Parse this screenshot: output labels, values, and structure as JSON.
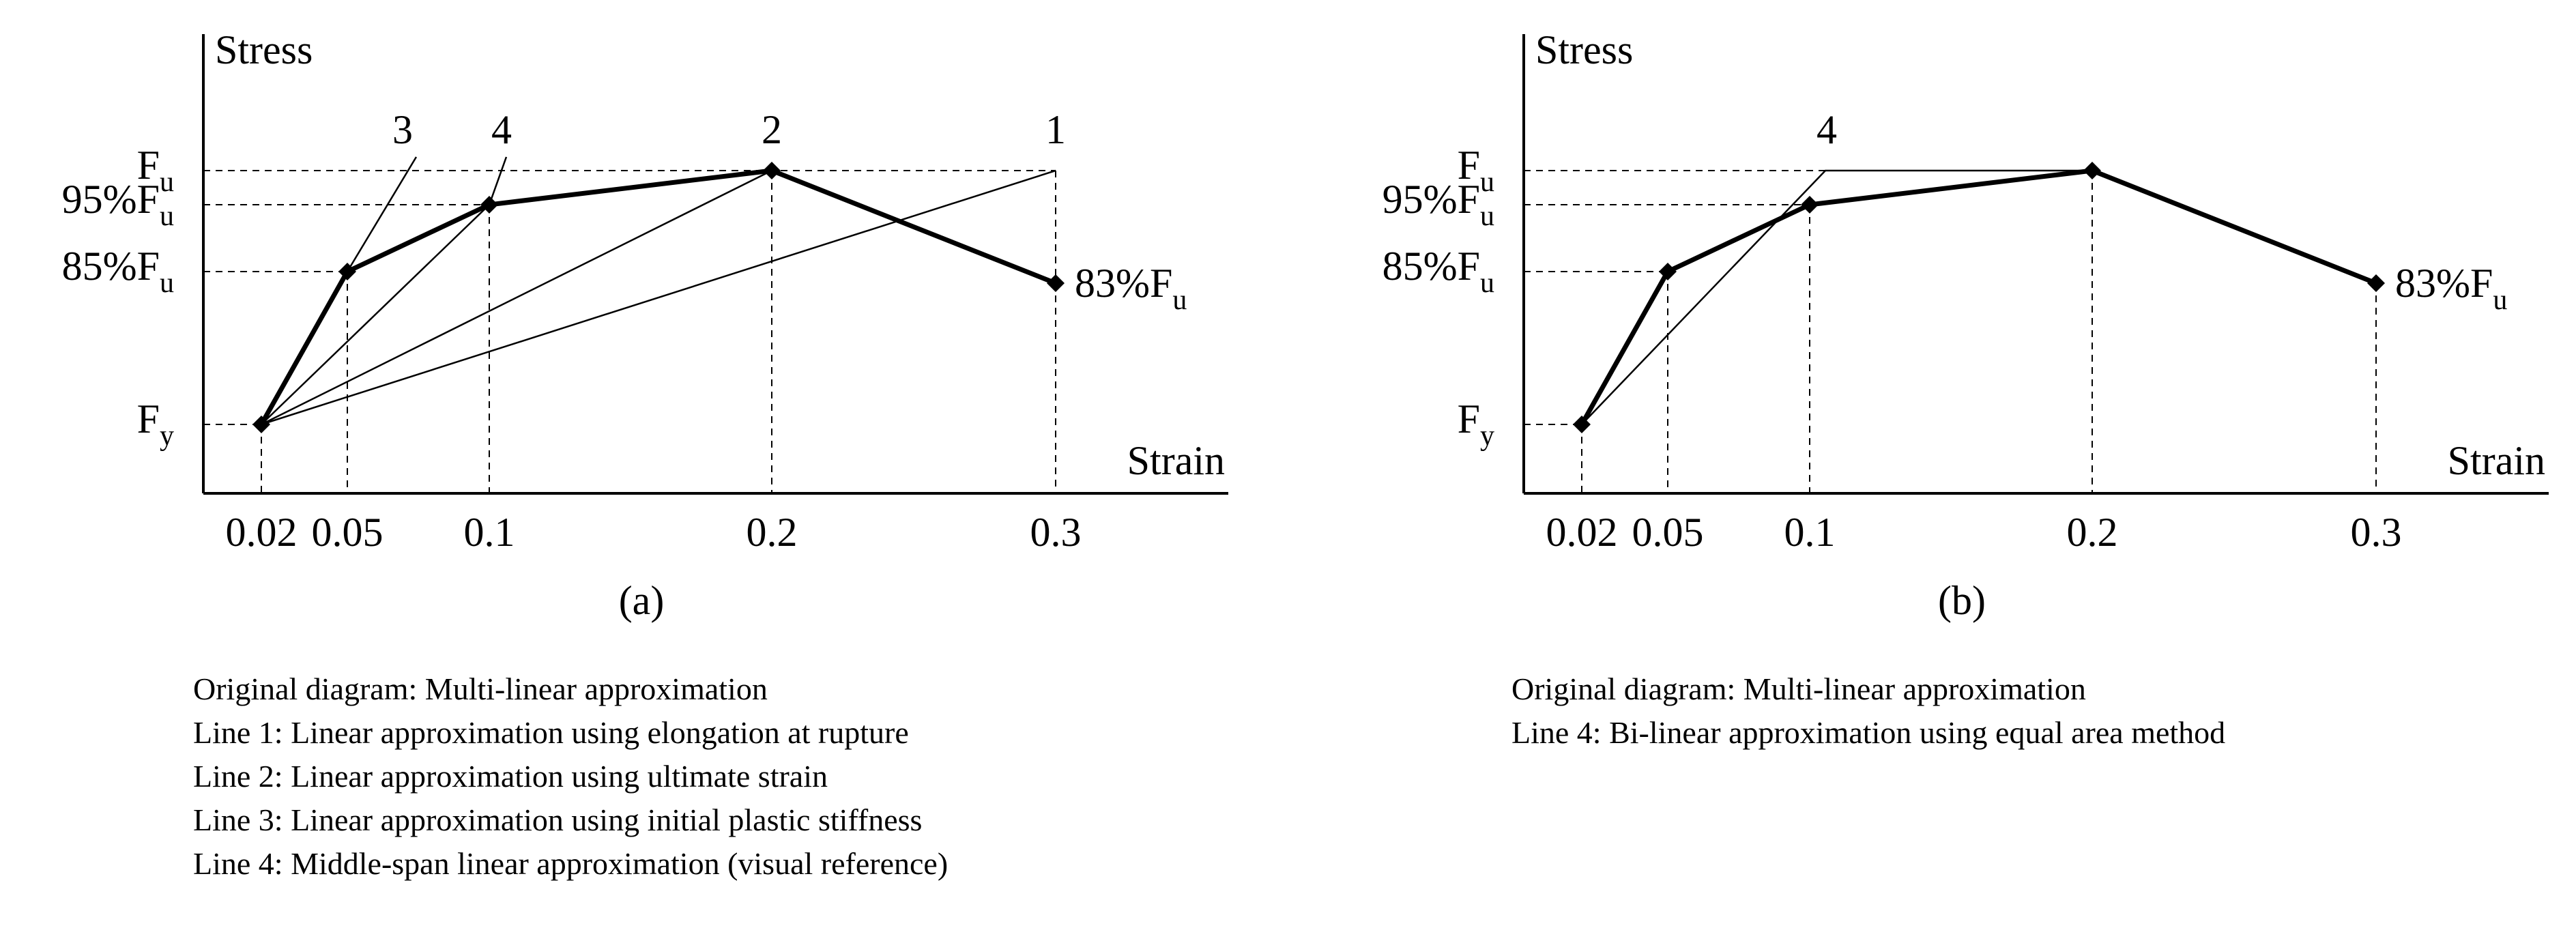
{
  "chart_data": [
    {
      "panel": "(a)",
      "type": "line",
      "xlabel": "Strain",
      "ylabel": "Stress",
      "x_ticks": [
        "0.02",
        "0.05",
        "0.1",
        "0.2",
        "0.3"
      ],
      "y_ticks": [
        {
          "base": "F",
          "sub": "y"
        },
        {
          "base": "85%F",
          "sub": "u"
        },
        {
          "base": "95%F",
          "sub": "u"
        },
        {
          "base": "F",
          "sub": "u"
        }
      ],
      "series": [
        {
          "points": [
            [
              "0.02",
              "Fy"
            ],
            [
              "0.05",
              "85%Fu"
            ],
            [
              "0.1",
              "95%Fu"
            ],
            [
              "0.2",
              "Fu"
            ],
            [
              "0.3",
              "83%Fu"
            ]
          ],
          "style": "thick",
          "markers": true
        },
        {
          "name": "1",
          "points": [
            [
              "0.02",
              "Fy"
            ],
            [
              "0.3",
              "Fu"
            ]
          ],
          "style": "thin"
        },
        {
          "name": "2",
          "points": [
            [
              "0.02",
              "Fy"
            ],
            [
              "0.2",
              "Fu"
            ]
          ],
          "style": "thin"
        },
        {
          "name": "3",
          "points": [
            [
              "0.02",
              "Fy"
            ],
            [
              "0.05",
              "85%Fu"
            ],
            [
              "0.07",
              "Fu+"
            ]
          ],
          "style": "thin"
        },
        {
          "name": "4",
          "points": [
            [
              "0.02",
              "Fy"
            ],
            [
              "0.1",
              "95%Fu"
            ],
            [
              "0.105",
              "Fu+"
            ]
          ],
          "style": "thin"
        }
      ],
      "line_labels": [
        "3",
        "4",
        "2",
        "1"
      ],
      "annotations": [
        {
          "base": "83%F",
          "sub": "u"
        }
      ],
      "caption": "(a)",
      "legend": [
        "Original diagram: Multi-linear approximation",
        "Line 1: Linear approximation using elongation at rupture",
        "Line 2: Linear approximation using ultimate strain",
        "Line 3: Linear approximation using initial plastic stiffness",
        "Line 4: Middle-span linear approximation (visual reference)"
      ]
    },
    {
      "panel": "(b)",
      "type": "line",
      "xlabel": "Strain",
      "ylabel": "Stress",
      "x_ticks": [
        "0.02",
        "0.05",
        "0.1",
        "0.2",
        "0.3"
      ],
      "y_ticks": [
        {
          "base": "F",
          "sub": "y"
        },
        {
          "base": "85%F",
          "sub": "u"
        },
        {
          "base": "95%F",
          "sub": "u"
        },
        {
          "base": "F",
          "sub": "u"
        }
      ],
      "series": [
        {
          "points": [
            [
              "0.02",
              "Fy"
            ],
            [
              "0.05",
              "85%Fu"
            ],
            [
              "0.1",
              "95%Fu"
            ],
            [
              "0.2",
              "Fu"
            ],
            [
              "0.3",
              "83%Fu"
            ]
          ],
          "style": "thick",
          "markers": true
        },
        {
          "name": "4",
          "points": [
            [
              "0.02",
              "Fy"
            ],
            [
              "0.105",
              "Fu"
            ],
            [
              "0.2",
              "Fu"
            ]
          ],
          "style": "thin"
        }
      ],
      "line_labels": [
        "4"
      ],
      "annotations": [
        {
          "base": "83%F",
          "sub": "u"
        }
      ],
      "caption": "(b)",
      "legend": [
        "Original diagram: Multi-linear approximation",
        "Line 4: Bi-linear approximation using equal area method"
      ]
    }
  ]
}
